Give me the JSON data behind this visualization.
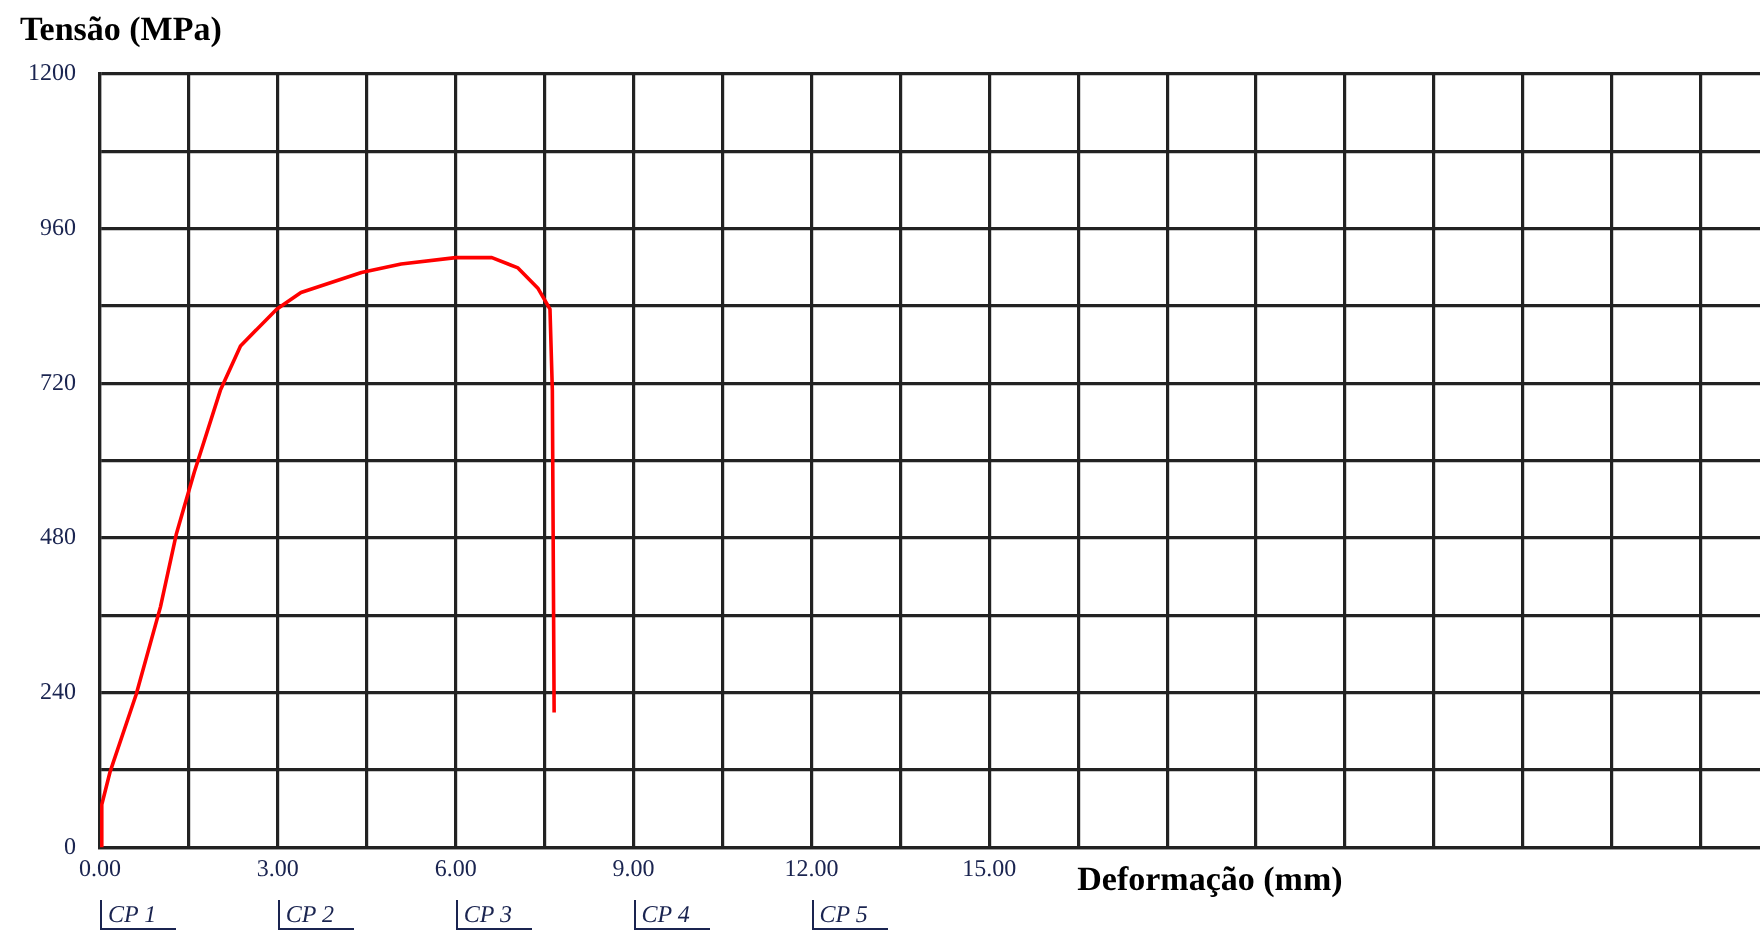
{
  "chart_data": {
    "type": "line",
    "xlabel": "Deformação (mm)",
    "ylabel": "Tensão (MPa)",
    "series": [
      {
        "color": "#ff0000",
        "x": [
          0,
          0.03,
          0.17,
          0.61,
          1.02,
          1.29,
          1.59,
          2.03,
          2.37,
          2.98,
          3.39,
          4.41,
          5.08,
          6.0,
          6.61,
          7.05,
          7.39,
          7.59,
          7.63,
          7.66
        ],
        "values": [
          0,
          66,
          117,
          237,
          373,
          487,
          582,
          709,
          778,
          835,
          861,
          892,
          905,
          915,
          915,
          899,
          867,
          835,
          709,
          209
        ]
      }
    ],
    "xlim": [
      0,
      28
    ],
    "ylim": [
      0,
      1200
    ],
    "xticks": [
      {
        "value": 0,
        "label": "0.00"
      },
      {
        "value": 1.5,
        "label": null
      },
      {
        "value": 3,
        "label": "3.00"
      },
      {
        "value": 4.5,
        "label": null
      },
      {
        "value": 6,
        "label": "6.00"
      },
      {
        "value": 7.5,
        "label": null
      },
      {
        "value": 9,
        "label": "9.00"
      },
      {
        "value": 10.5,
        "label": null
      },
      {
        "value": 12,
        "label": "12.00"
      },
      {
        "value": 13.5,
        "label": null
      },
      {
        "value": 15,
        "label": "15.00"
      },
      {
        "value": 16.5,
        "label": null
      },
      {
        "value": 18,
        "label": null
      },
      {
        "value": 19.5,
        "label": null
      },
      {
        "value": 21,
        "label": null
      },
      {
        "value": 22.5,
        "label": null
      },
      {
        "value": 24,
        "label": null
      },
      {
        "value": 25.5,
        "label": null
      },
      {
        "value": 27,
        "label": null
      }
    ],
    "yticks": [
      0,
      {
        "value": 120,
        "label": null
      },
      240,
      {
        "value": 360,
        "label": null
      },
      480,
      {
        "value": 600,
        "label": null
      },
      720,
      {
        "value": 840,
        "label": null
      },
      960,
      {
        "value": 1080,
        "label": null
      },
      1200
    ],
    "grid": true,
    "legend": false,
    "marker": "none",
    "line_style": "solid",
    "annotations": [
      "CP 1",
      "CP 2",
      "CP 3",
      "CP 4",
      "CP 5"
    ]
  }
}
